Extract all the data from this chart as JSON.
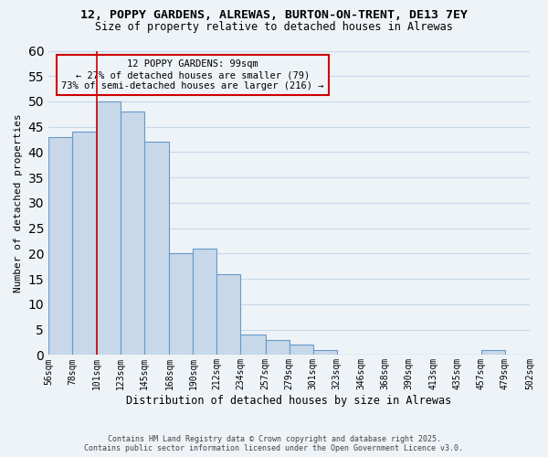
{
  "title": "12, POPPY GARDENS, ALREWAS, BURTON-ON-TRENT, DE13 7EY",
  "subtitle": "Size of property relative to detached houses in Alrewas",
  "xlabel": "Distribution of detached houses by size in Alrewas",
  "ylabel": "Number of detached properties",
  "bar_color": "#c8d8e8",
  "bar_edge_color": "#6699cc",
  "grid_color": "#c8d8e8",
  "annotation_box_color": "#cc0000",
  "annotation_text_line1": "12 POPPY GARDENS: 99sqm",
  "annotation_text_line2": "← 27% of detached houses are smaller (79)",
  "annotation_text_line3": "73% of semi-detached houses are larger (216) →",
  "vline_x": 101,
  "vline_color": "#cc0000",
  "bins": [
    56,
    78,
    101,
    123,
    145,
    168,
    190,
    212,
    234,
    257,
    279,
    301,
    323,
    346,
    368,
    390,
    413,
    435,
    457,
    479,
    502
  ],
  "bin_labels": [
    "56sqm",
    "78sqm",
    "101sqm",
    "123sqm",
    "145sqm",
    "168sqm",
    "190sqm",
    "212sqm",
    "234sqm",
    "257sqm",
    "279sqm",
    "301sqm",
    "323sqm",
    "346sqm",
    "368sqm",
    "390sqm",
    "413sqm",
    "435sqm",
    "457sqm",
    "479sqm",
    "502sqm"
  ],
  "values": [
    43,
    44,
    50,
    48,
    42,
    20,
    21,
    16,
    4,
    3,
    2,
    1,
    0,
    0,
    0,
    0,
    0,
    0,
    1,
    0
  ],
  "ylim": [
    0,
    60
  ],
  "yticks": [
    0,
    5,
    10,
    15,
    20,
    25,
    30,
    35,
    40,
    45,
    50,
    55,
    60
  ],
  "footer_line1": "Contains HM Land Registry data © Crown copyright and database right 2025.",
  "footer_line2": "Contains public sector information licensed under the Open Government Licence v3.0.",
  "background_color": "#eef3f8"
}
